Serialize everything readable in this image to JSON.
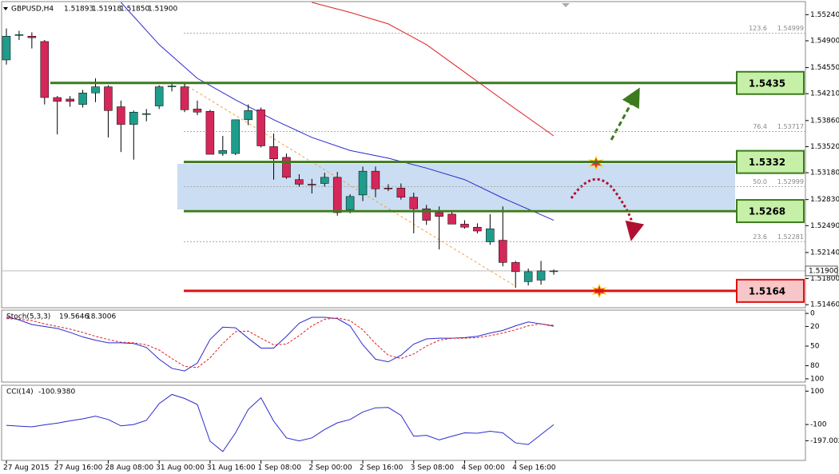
{
  "chart_data": {
    "type": "candlestick",
    "header": {
      "symbol": "GBPUSD,H4",
      "last_bar_labels": [
        "1.51893",
        "1.51918",
        "1.51850",
        "1.51900"
      ]
    },
    "categories": [
      "27 Aug 2015",
      null,
      null,
      null,
      "27 Aug 16:00",
      null,
      null,
      null,
      "28 Aug 08:00",
      null,
      null,
      null,
      "31 Aug 00:00",
      null,
      null,
      null,
      "31 Aug 16:00",
      null,
      null,
      null,
      "1 Sep 08:00",
      null,
      null,
      null,
      "2 Sep 00:00",
      null,
      null,
      null,
      "2 Sep 16:00",
      null,
      null,
      null,
      "3 Sep 08:00",
      null,
      null,
      null,
      "4 Sep 00:00",
      null,
      null,
      null,
      "4 Sep 16:00",
      null,
      null,
      null
    ],
    "open": [
      1.5465,
      1.5498,
      1.5496,
      1.5489,
      1.5416,
      1.5414,
      1.5407,
      1.5422,
      1.543,
      1.5404,
      1.5381,
      1.5394,
      1.5405,
      1.543,
      1.543,
      1.5401,
      1.5398,
      1.5343,
      1.5343,
      1.5387,
      1.54,
      1.5352,
      1.5338,
      1.5309,
      1.5303,
      1.5304,
      1.5312,
      1.527,
      1.5289,
      1.532,
      1.5298,
      1.5298,
      1.5286,
      1.5271,
      1.5266,
      1.5264,
      1.5251,
      1.5247,
      1.5228,
      1.523,
      1.5201,
      1.5176,
      1.5178,
      1.51893
    ],
    "high": [
      1.5506,
      1.5503,
      1.5501,
      1.5491,
      1.5418,
      1.5418,
      1.5426,
      1.5441,
      1.5432,
      1.5412,
      1.5399,
      1.5401,
      1.5432,
      1.5436,
      1.5435,
      1.5412,
      1.54,
      1.5366,
      1.5387,
      1.5407,
      1.5403,
      1.5369,
      1.5343,
      1.5316,
      1.531,
      1.5318,
      1.5319,
      1.529,
      1.5326,
      1.5326,
      1.5303,
      1.5304,
      1.5292,
      1.5276,
      1.5274,
      1.5268,
      1.5256,
      1.5252,
      1.5264,
      1.5274,
      1.5203,
      1.5193,
      1.5203,
      1.51918
    ],
    "low": [
      1.5459,
      1.5491,
      1.548,
      1.5407,
      1.5368,
      1.5404,
      1.5403,
      1.541,
      1.5364,
      1.5345,
      1.5335,
      1.5385,
      1.5401,
      1.5424,
      1.5397,
      1.5393,
      1.5342,
      1.534,
      1.5341,
      1.538,
      1.5351,
      1.5309,
      1.531,
      1.53,
      1.5291,
      1.53,
      1.5262,
      1.5265,
      1.5281,
      1.5286,
      1.5294,
      1.5283,
      1.5239,
      1.525,
      1.5218,
      1.5251,
      1.5245,
      1.5239,
      1.5224,
      1.5196,
      1.5168,
      1.5171,
      1.5172,
      1.5185
    ],
    "close": [
      1.5496,
      1.5498,
      1.5494,
      1.5416,
      1.5411,
      1.5411,
      1.5422,
      1.543,
      1.5399,
      1.5381,
      1.5397,
      1.5395,
      1.543,
      1.5431,
      1.54,
      1.5397,
      1.5342,
      1.5347,
      1.5387,
      1.5399,
      1.5353,
      1.5336,
      1.5312,
      1.5303,
      1.5302,
      1.5312,
      1.5266,
      1.5287,
      1.532,
      1.5297,
      1.5297,
      1.5286,
      1.5271,
      1.5256,
      1.5261,
      1.5251,
      1.5247,
      1.5242,
      1.5245,
      1.5201,
      1.5189,
      1.5189,
      1.519,
      1.519
    ],
    "up_color": "#1f9c8c",
    "down_color": "#d6275a",
    "ylim": [
      1.554,
      1.5142
    ],
    "yticks": [
      {
        "value": 1.5524,
        "label": "1.55240"
      },
      {
        "value": 1.549,
        "label": "1.54900"
      },
      {
        "value": 1.5455,
        "label": "1.54550"
      },
      {
        "value": 1.5421,
        "label": "1.54210"
      },
      {
        "value": 1.5386,
        "label": "1.53860"
      },
      {
        "value": 1.5352,
        "label": "1.53520"
      },
      {
        "value": 1.5318,
        "label": "1.53180"
      },
      {
        "value": 1.5283,
        "label": "1.52830"
      },
      {
        "value": 1.5249,
        "label": "1.52490"
      },
      {
        "value": 1.5214,
        "label": "1.52140"
      },
      {
        "value": 1.518,
        "label": "1.51800"
      },
      {
        "value": 1.5146,
        "label": "1.51460"
      }
    ],
    "current_price": {
      "value": 1.519,
      "label": "1.51900"
    },
    "moving_averages": [
      {
        "color": "#2a2ad0",
        "x": [
          9,
          12,
          15,
          18,
          21,
          24,
          27,
          30,
          33,
          36,
          39,
          43
        ],
        "values": [
          1.554,
          1.5485,
          1.5441,
          1.5413,
          1.5387,
          1.5364,
          1.5347,
          1.5337,
          1.5324,
          1.5309,
          1.5285,
          1.5256
        ]
      },
      {
        "color": "#e02020",
        "x": [
          24,
          27,
          30,
          33,
          36,
          39,
          43
        ],
        "values": [
          1.554,
          1.5527,
          1.5512,
          1.5485,
          1.5449,
          1.5413,
          1.5366
        ]
      }
    ],
    "levels": [
      {
        "value": 1.5435,
        "color": "#3d7a1e",
        "fill": "#c6efa8"
      },
      {
        "value": 1.5332,
        "color": "#3d7a1e",
        "fill": "#c6efa8"
      },
      {
        "value": 1.5268,
        "color": "#3d7a1e",
        "fill": "#c6efa8"
      },
      {
        "value": 1.5164,
        "color": "#e01010",
        "fill": "#f7c6c8"
      }
    ],
    "fib_levels": [
      {
        "level": "123.6",
        "price": 1.54999
      },
      {
        "level": "76.4",
        "price": 1.53717
      },
      {
        "level": "50.0",
        "price": 1.52999
      },
      {
        "level": "23.6",
        "price": 1.52281
      }
    ],
    "stochastic": {
      "title": "Stoch(5,3,3)",
      "ylim": [
        -5,
        105
      ],
      "yticks": [
        100,
        80,
        50,
        20,
        0
      ],
      "series": [
        {
          "color": "#2a2ad0",
          "values": [
            5,
            10,
            17,
            20,
            23,
            29,
            36,
            41,
            45,
            45,
            46,
            52,
            70,
            84,
            88,
            76,
            40,
            21,
            22,
            38,
            53,
            53,
            35,
            15,
            6,
            6,
            8,
            19,
            48,
            70,
            74,
            64,
            47,
            39,
            38,
            38,
            37,
            35,
            30,
            26,
            19,
            13,
            16,
            19.5646
          ]
        },
        {
          "color": "#e02020",
          "values": [
            8,
            9,
            11,
            16,
            20,
            24,
            29,
            35,
            40,
            44,
            45,
            48,
            56,
            69,
            81,
            83,
            68,
            46,
            28,
            27,
            38,
            48,
            47,
            34,
            19,
            9,
            7,
            11,
            25,
            46,
            64,
            69,
            62,
            50,
            41,
            38,
            38,
            37,
            34,
            30,
            25,
            19,
            16,
            18.3006
          ]
        }
      ]
    },
    "cci": {
      "title": "CCI(14)",
      "last_value_label": "-100.9380",
      "ylim": [
        135,
        -315
      ],
      "yticks": [
        100,
        -100,
        -197.0023
      ],
      "color": "#2a2ad0",
      "values": [
        -105,
        -110,
        -114,
        -102,
        -92,
        -78,
        -66,
        -50,
        -70,
        -108,
        -100,
        -75,
        25,
        80,
        56,
        20,
        -200,
        -262,
        -150,
        -10,
        60,
        -80,
        -180,
        -198,
        -180,
        -130,
        -90,
        -70,
        -25,
        0,
        2,
        -45,
        -170,
        -165,
        -192,
        -170,
        -150,
        -152,
        -140,
        -150,
        -210,
        -220,
        -160,
        -100.938
      ]
    }
  }
}
